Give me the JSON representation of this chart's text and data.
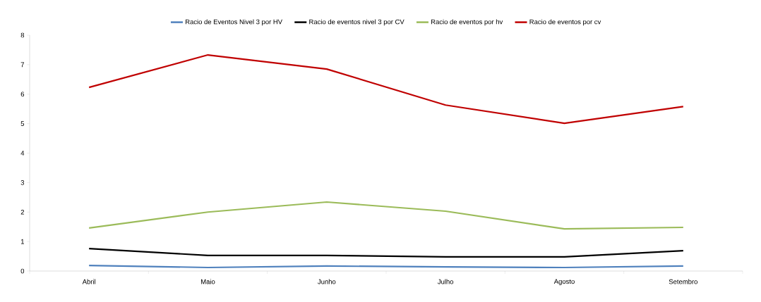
{
  "chart_data": {
    "type": "line",
    "categories": [
      "Abril",
      "Maio",
      "Junho",
      "Julho",
      "Agosto",
      "Setembro"
    ],
    "series": [
      {
        "name": "Racio de Eventos Nivel 3 por HV",
        "color": "#4f81bd",
        "values": [
          0.19,
          0.12,
          0.17,
          0.14,
          0.12,
          0.17
        ]
      },
      {
        "name": "Racio de eventos nivel 3 por CV",
        "color": "#000000",
        "values": [
          0.76,
          0.53,
          0.53,
          0.48,
          0.48,
          0.69
        ]
      },
      {
        "name": "Racio de eventos por hv",
        "color": "#9bbb59",
        "values": [
          1.46,
          2.0,
          2.34,
          2.03,
          1.43,
          1.48
        ]
      },
      {
        "name": "Racio de eventos por cv",
        "color": "#c00000",
        "values": [
          6.23,
          7.33,
          6.85,
          5.63,
          5.01,
          5.58
        ]
      }
    ],
    "ylim": [
      0,
      8
    ],
    "yticks": [
      0,
      1,
      2,
      3,
      4,
      5,
      6,
      7,
      8
    ],
    "legend": "top",
    "grid": false,
    "marker": "none",
    "line_style": "solid"
  }
}
